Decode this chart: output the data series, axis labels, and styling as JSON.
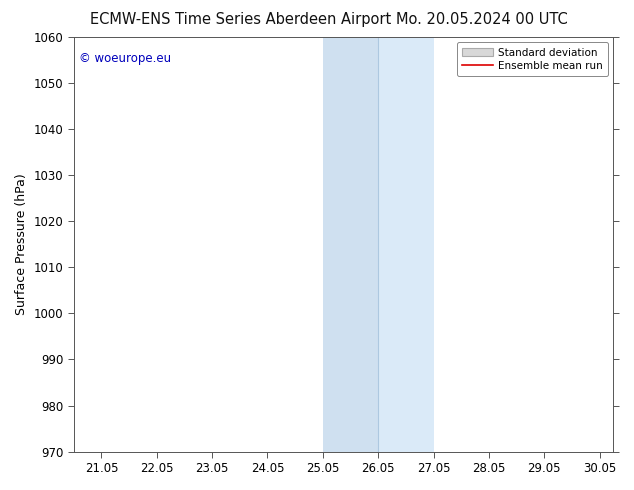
{
  "title_left": "ECMW-ENS Time Series Aberdeen Airport",
  "title_right": "Mo. 20.05.2024 00 UTC",
  "ylabel": "Surface Pressure (hPa)",
  "ylim": [
    970,
    1060
  ],
  "yticks": [
    970,
    980,
    990,
    1000,
    1010,
    1020,
    1030,
    1040,
    1050,
    1060
  ],
  "xlim_start": 20.55,
  "xlim_end": 30.3,
  "xtick_positions": [
    21.05,
    22.05,
    23.05,
    24.05,
    25.05,
    26.05,
    27.05,
    28.05,
    29.05,
    30.05
  ],
  "xtick_labels": [
    "21.05",
    "22.05",
    "23.05",
    "24.05",
    "25.05",
    "26.05",
    "27.05",
    "28.05",
    "29.05",
    "30.05"
  ],
  "shaded_band1_start": 25.05,
  "shaded_band1_end": 26.05,
  "shaded_band2_start": 26.05,
  "shaded_band2_end": 27.05,
  "shaded_color1": "#cfe0f0",
  "shaded_color2": "#daeaf8",
  "divider_x": 26.05,
  "divider_color": "#adc8e0",
  "watermark_text": "© woeurope.eu",
  "watermark_color": "#0000bb",
  "legend_std_label": "Standard deviation",
  "legend_mean_label": "Ensemble mean run",
  "legend_std_facecolor": "#d8d8d8",
  "legend_std_edgecolor": "#aaaaaa",
  "legend_mean_color": "#dd0000",
  "background_color": "#ffffff",
  "plot_bg_color": "#ffffff",
  "spine_color": "#555555",
  "title_fontsize": 10.5,
  "ylabel_fontsize": 9,
  "tick_fontsize": 8.5,
  "watermark_fontsize": 8.5,
  "legend_fontsize": 7.5
}
